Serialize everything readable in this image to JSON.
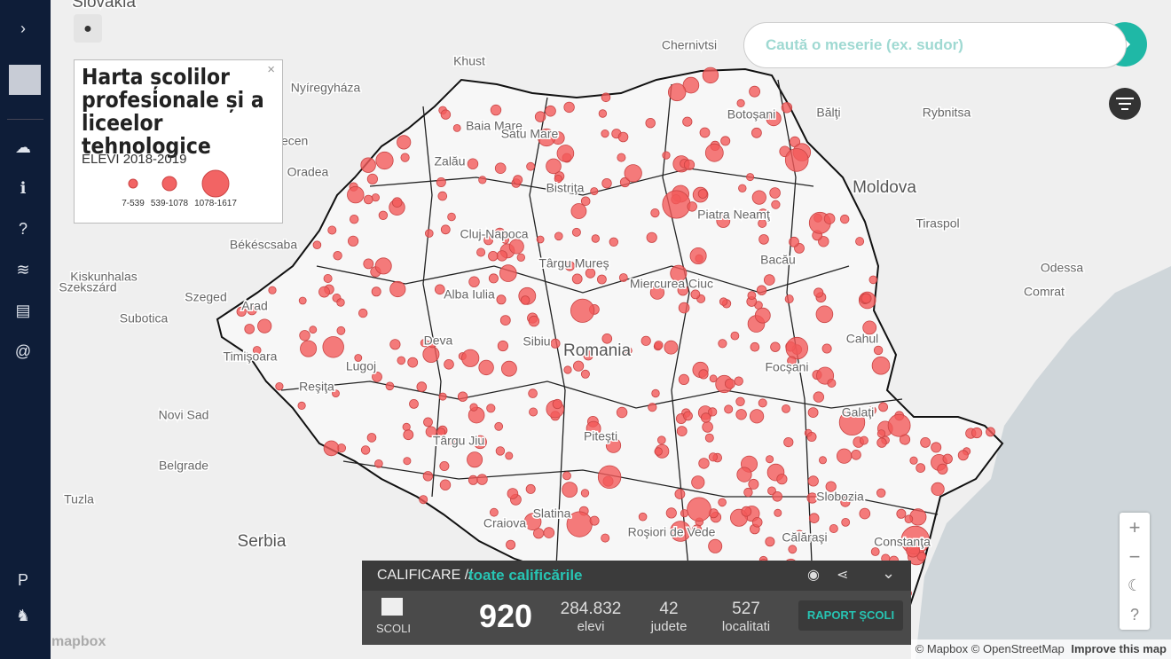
{
  "search": {
    "placeholder": "Caută o meserie (ex. sudor)"
  },
  "legend": {
    "title": "Harta școlilor profesionale și a liceelor tehnologice",
    "subtitle": "ELEVI 2018-2019",
    "classes": [
      "7-539",
      "539-1078",
      "1078-1617"
    ]
  },
  "map_labels": [
    "Slovakia",
    "Chernivtsi",
    "Khust",
    "Nyíregyháza",
    "Baia Mare",
    "Bălţi",
    "Botoşani",
    "Debrecen",
    "Satu Mare",
    "Moldova",
    "Oradea",
    "Cluj-Napoca",
    "Piatra Neamţ",
    "Tiraspol",
    "Odessa",
    "Békéscsaba",
    "Târgu Mureş",
    "Szeged",
    "Arad",
    "Comrat",
    "Alba Iulia",
    "Miercurea Ciuc",
    "Deva",
    "Sibiu",
    "Romania",
    "Timişoara",
    "Lugoj",
    "Focşani",
    "Galaţi",
    "Reşiţa",
    "Novi Sad",
    "Târgu Jiu",
    "Piteşti",
    "Belgrade",
    "Slobozia",
    "Craiova",
    "Slatina",
    "Serbia",
    "Tuzla",
    "Călăraşi",
    "Constanţa",
    "Roşiori de Vede",
    "Zalău",
    "Bistriţa",
    "Bacău",
    "Cahul",
    "Kiskunhalas",
    "Szekszárd",
    "Subotica",
    "Rybnitsa"
  ],
  "panel": {
    "filter_label": "CALIFICARE //",
    "filter_value": "toate calificările",
    "schools_label": "SCOLI",
    "schools": "920",
    "stats": [
      {
        "value": "284.832",
        "label": "elevi"
      },
      {
        "value": "42",
        "label": "judete"
      },
      {
        "value": "527",
        "label": "localitati"
      }
    ],
    "button": "RAPORT ȘCOLI"
  },
  "attribution": {
    "mapbox": "© Mapbox",
    "osm": "© OpenStreetMap",
    "improve": "Improve this map",
    "logo": "mapbox"
  }
}
